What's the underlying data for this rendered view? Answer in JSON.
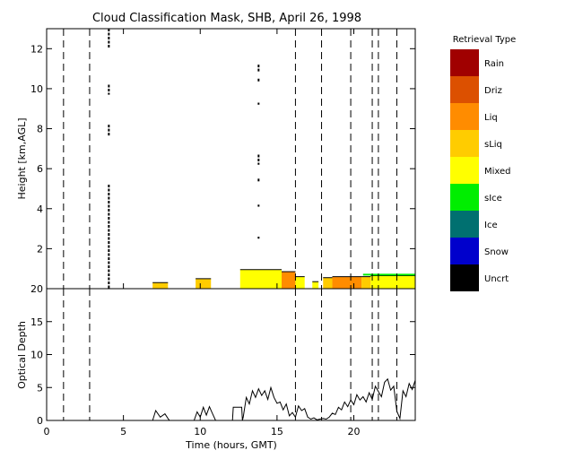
{
  "chart_data": [
    {
      "type": "heatmap",
      "title": "Cloud Classification Mask, SHB, April 26, 1998",
      "xlabel": "",
      "ylabel": "Height [km,AGL]",
      "xlim": [
        0,
        24
      ],
      "ylim": [
        0,
        13
      ],
      "x_ticks": [
        0,
        5,
        10,
        15,
        20
      ],
      "y_ticks": [
        2,
        4,
        6,
        8,
        10,
        12
      ],
      "y_tick_labels": [
        "2",
        "4",
        "6",
        "8",
        "10",
        "12"
      ],
      "legend_title": "Retrieval Type",
      "legend": [
        {
          "label": "Rain",
          "color": "#a00000"
        },
        {
          "label": "Driz",
          "color": "#dc5000"
        },
        {
          "label": "Liq",
          "color": "#ff8c00"
        },
        {
          "label": "sLiq",
          "color": "#ffcc00"
        },
        {
          "label": "Mixed",
          "color": "#ffff00"
        },
        {
          "label": "sIce",
          "color": "#00ee00"
        },
        {
          "label": "Ice",
          "color": "#007070"
        },
        {
          "label": "Snow",
          "color": "#0000cc"
        },
        {
          "label": "Uncrt",
          "color": "#000000"
        }
      ],
      "dashed_times": [
        1.1,
        2.8,
        16.2,
        17.9,
        19.8,
        21.2,
        21.6,
        22.8
      ],
      "cloud_regions": [
        {
          "type": "sLiq",
          "x": [
            6.9,
            7.9
          ],
          "top": 0.3
        },
        {
          "type": "sLiq",
          "x": [
            9.7,
            10.7
          ],
          "top": 0.5
        },
        {
          "type": "Mixed",
          "x": [
            12.6,
            15.3
          ],
          "top": 0.95
        },
        {
          "type": "Liq",
          "x": [
            15.3,
            16.2
          ],
          "top": 0.85
        },
        {
          "type": "Mixed",
          "x": [
            16.2,
            16.8
          ],
          "top": 0.6
        },
        {
          "type": "Mixed",
          "x": [
            17.3,
            17.7
          ],
          "top": 0.35
        },
        {
          "type": "sLiq",
          "x": [
            18.0,
            18.6
          ],
          "top": 0.55
        },
        {
          "type": "Liq",
          "x": [
            18.6,
            20.5
          ],
          "top": 0.6
        },
        {
          "type": "sLiq",
          "x": [
            20.5,
            21.1
          ],
          "top": 0.6
        },
        {
          "type": "Mixed",
          "x": [
            21.1,
            24.0
          ],
          "top": 0.65
        }
      ],
      "sice_top_segment": {
        "x": [
          20.6,
          24.0
        ],
        "height": 0.7
      },
      "uncertain_columns": [
        {
          "x": 4.05,
          "y": [
            0,
            5.2
          ]
        },
        {
          "x": 4.05,
          "y": [
            7.6,
            8.2
          ]
        },
        {
          "x": 4.05,
          "y": [
            9.7,
            10.2
          ]
        },
        {
          "x": 4.05,
          "y": [
            12.0,
            13.0
          ]
        },
        {
          "x": 13.8,
          "y": [
            2.5,
            2.6
          ]
        },
        {
          "x": 13.8,
          "y": [
            4.1,
            4.2
          ]
        },
        {
          "x": 13.8,
          "y": [
            5.3,
            5.5
          ]
        },
        {
          "x": 13.8,
          "y": [
            6.2,
            6.7
          ]
        },
        {
          "x": 13.8,
          "y": [
            9.2,
            9.3
          ]
        },
        {
          "x": 13.8,
          "y": [
            10.3,
            10.5
          ]
        },
        {
          "x": 13.8,
          "y": [
            10.8,
            11.2
          ]
        }
      ]
    },
    {
      "type": "line",
      "title": "",
      "xlabel": "Time (hours, GMT)",
      "ylabel": "Optical Depth",
      "xlim": [
        0,
        24
      ],
      "ylim": [
        0,
        20
      ],
      "x_ticks": [
        0,
        5,
        10,
        15,
        20
      ],
      "x_tick_labels": [
        "0",
        "5",
        "10",
        "15",
        "20"
      ],
      "y_ticks": [
        0,
        5,
        10,
        15,
        20
      ],
      "y_tick_labels": [
        "0",
        "5",
        "10",
        "15",
        "20"
      ],
      "dashed_times": [
        1.1,
        2.8,
        16.2,
        17.9,
        19.8,
        21.2,
        21.6,
        22.8
      ],
      "series": [
        {
          "x": [
            6.9,
            7.1,
            7.4,
            7.7,
            7.9,
            8.0,
            9.6,
            9.8,
            10.0,
            10.2,
            10.4,
            10.6,
            10.8,
            11.0,
            12.1,
            12.15,
            12.7,
            12.75,
            12.8,
            13.0,
            13.2,
            13.4,
            13.6,
            13.8,
            14.0,
            14.2,
            14.4,
            14.6,
            14.8,
            15.0,
            15.2,
            15.4,
            15.6,
            15.8,
            16.0,
            16.2,
            16.4,
            16.6,
            16.8,
            17.0,
            17.2,
            17.4,
            17.6,
            17.8,
            18.0,
            18.2,
            18.4,
            18.6,
            18.8,
            19.0,
            19.2,
            19.4,
            19.6,
            19.8,
            20.0,
            20.2,
            20.4,
            20.6,
            20.8,
            21.0,
            21.2,
            21.4,
            21.6,
            21.8,
            22.0,
            22.2,
            22.4,
            22.6,
            22.8,
            23.0,
            23.2,
            23.4,
            23.6,
            23.8,
            24.0
          ],
          "values": [
            0,
            1.5,
            0.5,
            1.0,
            0.3,
            0,
            0,
            1.3,
            0.5,
            2.0,
            0.8,
            2.1,
            1.0,
            0,
            0,
            2.0,
            2.0,
            0,
            0.5,
            3.5,
            2.5,
            4.5,
            3.5,
            4.8,
            3.8,
            4.5,
            3.2,
            5.0,
            3.5,
            2.6,
            2.8,
            1.6,
            2.5,
            0.7,
            1.2,
            0.5,
            2.2,
            1.5,
            1.8,
            0.5,
            0.2,
            0.4,
            0.1,
            0.2,
            0.3,
            0.2,
            0.5,
            1.1,
            0.9,
            2.0,
            1.6,
            2.8,
            2.1,
            3.1,
            2.4,
            3.9,
            3.1,
            3.6,
            2.8,
            4.2,
            3.2,
            5.2,
            4.4,
            3.6,
            5.8,
            6.3,
            4.6,
            5.2,
            1.4,
            0.3,
            4.5,
            3.6,
            5.6,
            4.7,
            6.1
          ]
        }
      ]
    }
  ]
}
